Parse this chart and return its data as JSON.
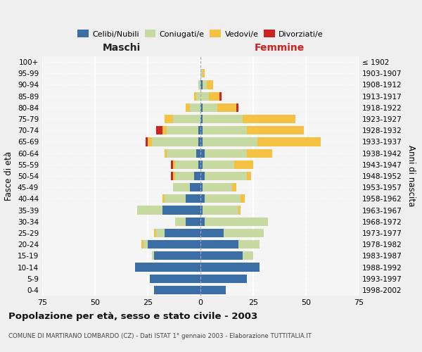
{
  "age_groups": [
    "0-4",
    "5-9",
    "10-14",
    "15-19",
    "20-24",
    "25-29",
    "30-34",
    "35-39",
    "40-44",
    "45-49",
    "50-54",
    "55-59",
    "60-64",
    "65-69",
    "70-74",
    "75-79",
    "80-84",
    "85-89",
    "90-94",
    "95-99",
    "100+"
  ],
  "birth_years": [
    "1998-2002",
    "1993-1997",
    "1988-1992",
    "1983-1987",
    "1978-1982",
    "1973-1977",
    "1968-1972",
    "1963-1967",
    "1958-1962",
    "1953-1957",
    "1948-1952",
    "1943-1947",
    "1938-1942",
    "1933-1937",
    "1928-1932",
    "1923-1927",
    "1918-1922",
    "1913-1917",
    "1908-1912",
    "1903-1907",
    "≤ 1902"
  ],
  "colors": {
    "celibi": "#3a6ea5",
    "coniugati": "#c5d9a0",
    "vedovi": "#f5c142",
    "divorziati": "#cc2222"
  },
  "maschi": {
    "celibi": [
      22,
      24,
      31,
      22,
      25,
      17,
      7,
      18,
      7,
      5,
      3,
      1,
      2,
      1,
      1,
      0,
      0,
      0,
      0,
      0,
      0
    ],
    "coniugati": [
      0,
      0,
      0,
      1,
      2,
      4,
      5,
      12,
      10,
      8,
      9,
      11,
      14,
      22,
      15,
      13,
      5,
      2,
      1,
      0,
      0
    ],
    "vedovi": [
      0,
      0,
      0,
      0,
      1,
      1,
      0,
      0,
      1,
      0,
      1,
      1,
      1,
      2,
      2,
      4,
      2,
      1,
      0,
      0,
      0
    ],
    "divorziati": [
      0,
      0,
      0,
      0,
      0,
      0,
      0,
      0,
      0,
      0,
      1,
      1,
      0,
      1,
      3,
      0,
      0,
      0,
      0,
      0,
      0
    ]
  },
  "femmine": {
    "celibi": [
      12,
      22,
      28,
      20,
      18,
      11,
      2,
      1,
      2,
      1,
      2,
      1,
      2,
      1,
      1,
      1,
      1,
      0,
      1,
      0,
      0
    ],
    "coniugati": [
      0,
      0,
      0,
      5,
      10,
      19,
      30,
      17,
      17,
      14,
      20,
      15,
      20,
      26,
      21,
      19,
      7,
      4,
      2,
      1,
      0
    ],
    "vedovi": [
      0,
      0,
      0,
      0,
      0,
      0,
      0,
      1,
      2,
      2,
      2,
      9,
      12,
      30,
      27,
      25,
      9,
      5,
      3,
      1,
      0
    ],
    "divorziati": [
      0,
      0,
      0,
      0,
      0,
      0,
      0,
      0,
      0,
      0,
      0,
      0,
      0,
      0,
      0,
      0,
      1,
      1,
      0,
      0,
      0
    ]
  },
  "xlim": 75,
  "title": "Popolazione per età, sesso e stato civile - 2003",
  "subtitle": "COMUNE DI MARTIRANO LOMBARDO (CZ) - Dati ISTAT 1° gennaio 2003 - Elaborazione TUTTITALIA.IT",
  "ylabel_left": "Fasce di età",
  "ylabel_right": "Anni di nascita",
  "legend_labels": [
    "Celibi/Nubili",
    "Coniugati/e",
    "Vedovi/e",
    "Divorziati/e"
  ],
  "maschi_label": "Maschi",
  "femmine_label": "Femmine",
  "bg_color": "#efefef",
  "plot_bg": "#f5f5f5"
}
